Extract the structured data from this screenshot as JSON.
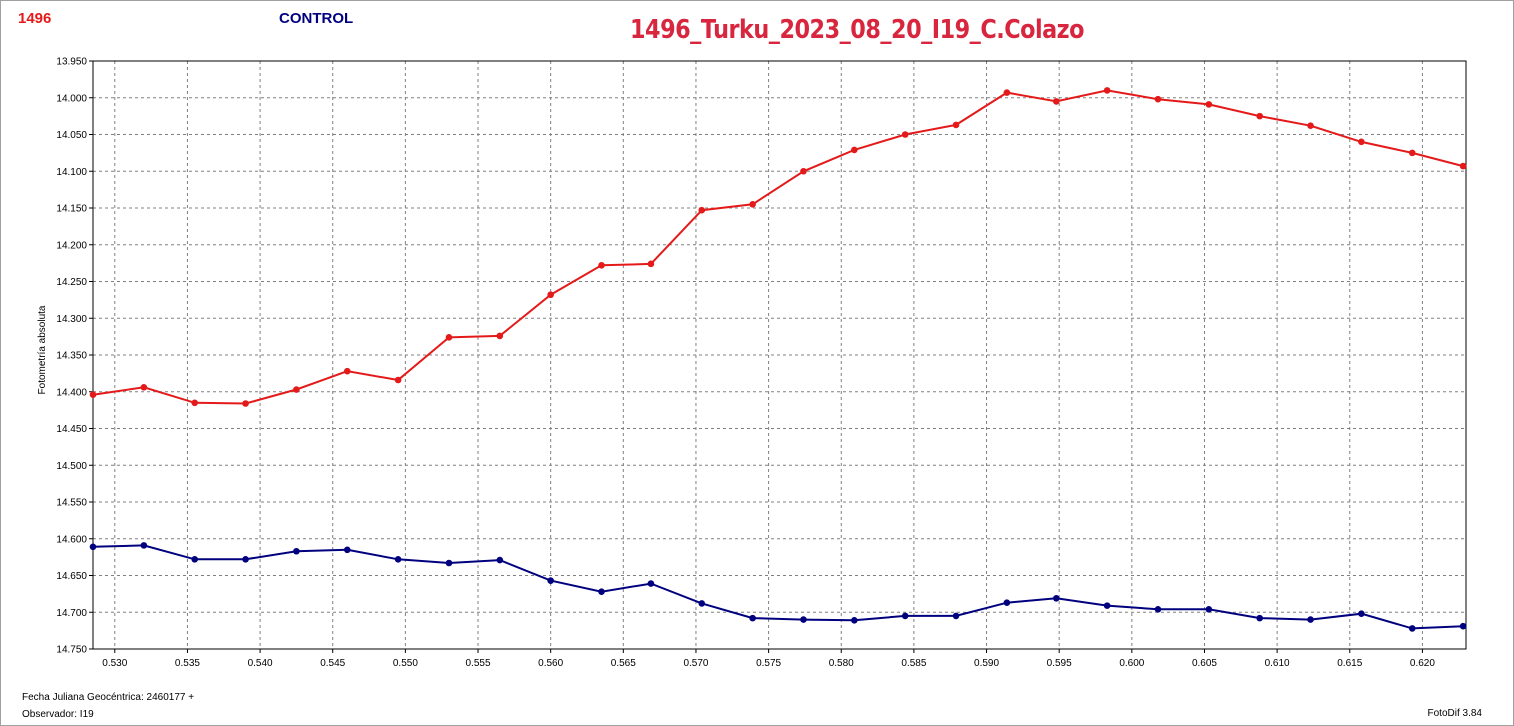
{
  "header": {
    "object_id": "1496",
    "control_label": "CONTROL",
    "title": "1496_Turku_2023_08_20_I19_C.Colazo"
  },
  "footer": {
    "date_label": "Fecha Juliana Geocéntrica: 2460177 +",
    "observer_label": "Observador: I19",
    "version": "FotoDif 3.84"
  },
  "colors": {
    "object_series": "#e41a1a",
    "control_series": "#00007f",
    "title": "#d7263d",
    "grid": "#808080"
  },
  "chart_data": {
    "type": "line",
    "ylabel": "Fotometría absoluta",
    "xlabel": "",
    "title": "1496_Turku_2023_08_20_I19_C.Colazo",
    "xlim": [
      0.5285,
      0.623
    ],
    "ylim": [
      13.95,
      14.75
    ],
    "y_inverted": true,
    "grid": true,
    "x_ticks": [
      "0.530",
      "0.535",
      "0.540",
      "0.545",
      "0.550",
      "0.555",
      "0.560",
      "0.565",
      "0.570",
      "0.575",
      "0.580",
      "0.585",
      "0.590",
      "0.595",
      "0.600",
      "0.605",
      "0.610",
      "0.615",
      "0.620"
    ],
    "y_ticks": [
      "13.950",
      "14.000",
      "14.050",
      "14.100",
      "14.150",
      "14.200",
      "14.250",
      "14.300",
      "14.350",
      "14.400",
      "14.450",
      "14.500",
      "14.550",
      "14.600",
      "14.650",
      "14.700",
      "14.750"
    ],
    "series": [
      {
        "name": "1496",
        "color": "#e41a1a",
        "x": [
          0.5285,
          0.532,
          0.5355,
          0.539,
          0.5425,
          0.546,
          0.5495,
          0.553,
          0.5565,
          0.56,
          0.5635,
          0.5669,
          0.5704,
          0.5739,
          0.5774,
          0.5809,
          0.5844,
          0.5879,
          0.5914,
          0.5948,
          0.5983,
          0.6018,
          0.6053,
          0.6088,
          0.6123,
          0.6158,
          0.6193,
          0.6228
        ],
        "y": [
          14.404,
          14.394,
          14.415,
          14.416,
          14.397,
          14.372,
          14.384,
          14.326,
          14.324,
          14.268,
          14.228,
          14.226,
          14.153,
          14.145,
          14.1,
          14.071,
          14.05,
          14.037,
          13.993,
          14.005,
          13.99,
          14.002,
          14.009,
          14.025,
          14.038,
          14.06,
          14.075,
          14.093
        ]
      },
      {
        "name": "CONTROL",
        "color": "#00007f",
        "x": [
          0.5285,
          0.532,
          0.5355,
          0.539,
          0.5425,
          0.546,
          0.5495,
          0.553,
          0.5565,
          0.56,
          0.5635,
          0.5669,
          0.5704,
          0.5739,
          0.5774,
          0.5809,
          0.5844,
          0.5879,
          0.5914,
          0.5948,
          0.5983,
          0.6018,
          0.6053,
          0.6088,
          0.6123,
          0.6158,
          0.6193,
          0.6228
        ],
        "y": [
          14.611,
          14.609,
          14.628,
          14.628,
          14.617,
          14.615,
          14.628,
          14.633,
          14.629,
          14.657,
          14.672,
          14.661,
          14.688,
          14.708,
          14.71,
          14.711,
          14.705,
          14.705,
          14.687,
          14.681,
          14.691,
          14.696,
          14.696,
          14.708,
          14.71,
          14.702,
          14.722,
          14.719
        ]
      }
    ]
  }
}
